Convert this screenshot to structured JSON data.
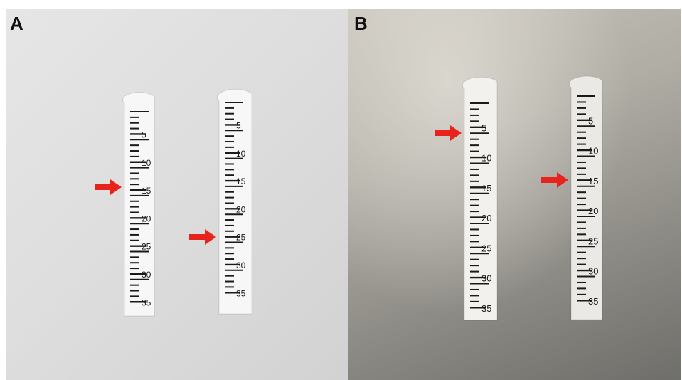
{
  "panels": [
    {
      "label": "A",
      "strips": [
        {
          "numbers": [
            "5",
            "10",
            "15",
            "20",
            "25",
            "30",
            "35"
          ]
        },
        {
          "numbers": [
            "5",
            "10",
            "15",
            "20",
            "25",
            "30",
            "35"
          ]
        }
      ],
      "arrows": [
        {
          "points_to_value": 14.5,
          "color": "#e8231c"
        },
        {
          "points_to_value": 25,
          "color": "#e8231c"
        }
      ]
    },
    {
      "label": "B",
      "strips": [
        {
          "numbers": [
            "5",
            "10",
            "15",
            "20",
            "25",
            "30",
            "35"
          ]
        },
        {
          "numbers": [
            "5",
            "10",
            "15",
            "20",
            "25",
            "30",
            "35"
          ]
        }
      ],
      "arrows": [
        {
          "points_to_value": 6,
          "color": "#e8231c"
        },
        {
          "points_to_value": 15,
          "color": "#e8231c"
        }
      ]
    }
  ],
  "colors": {
    "arrow": "#e8231c",
    "ink": "#1a1a1a"
  }
}
